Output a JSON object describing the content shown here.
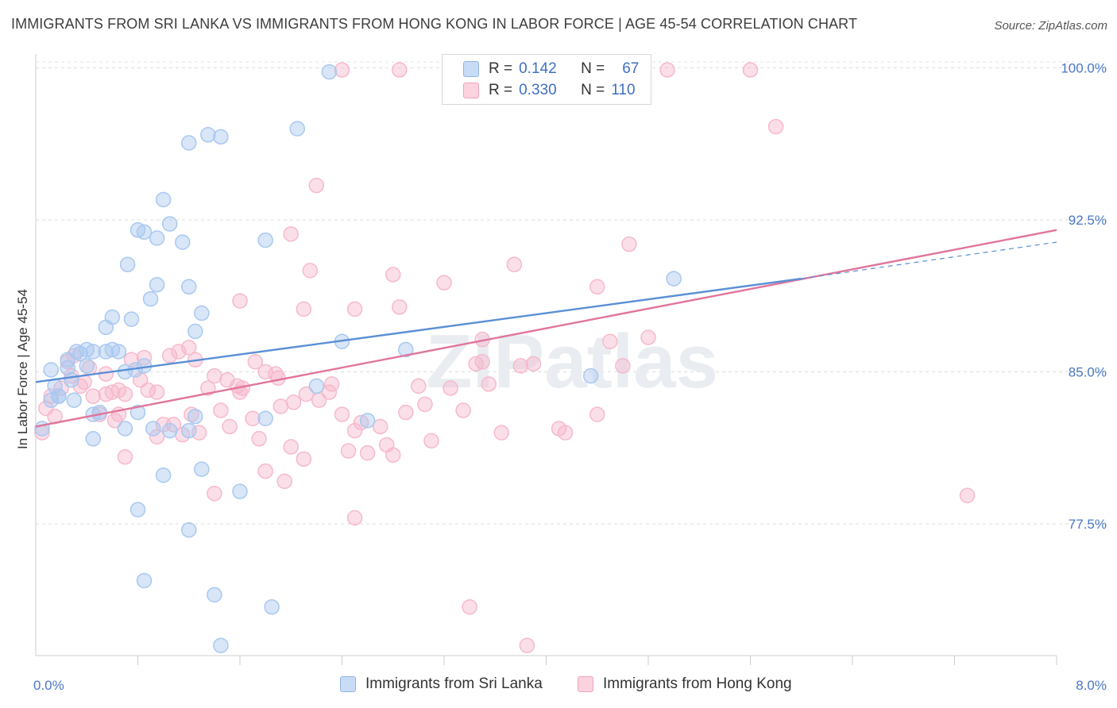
{
  "title": "IMMIGRANTS FROM SRI LANKA VS IMMIGRANTS FROM HONG KONG IN LABOR FORCE | AGE 45-54 CORRELATION CHART",
  "source": "Source: ZipAtlas.com",
  "watermark": "ZIPatlas",
  "legend": {
    "rows": [
      {
        "r_label": "R =",
        "r_value": "0.142",
        "n_label": "N =",
        "n_value": "67",
        "color": "#a9c8f0"
      },
      {
        "r_label": "R =",
        "r_value": "0.330",
        "n_label": "N =",
        "n_value": "110",
        "color": "#f6b9cb"
      }
    ]
  },
  "bottom_legend": [
    {
      "label": "Immigrants from Sri Lanka",
      "color": "#a9c8f0"
    },
    {
      "label": "Immigrants from Hong Kong",
      "color": "#f6b9cb"
    }
  ],
  "chart_data": {
    "type": "scatter",
    "xlabel": "",
    "ylabel": "In Labor Force | Age 45-54",
    "xlim": [
      0,
      8
    ],
    "ylim": [
      71.0,
      101.0
    ],
    "x_tick_labels": [
      "0.0%",
      "8.0%"
    ],
    "y_ticks": [
      77.5,
      85.0,
      92.5,
      100.0
    ],
    "y_tick_labels": [
      "77.5%",
      "85.0%",
      "92.5%",
      "100.0%"
    ],
    "grid": "horizontal dashed",
    "legend_position": "top-center",
    "series": [
      {
        "name": "Immigrants from Sri Lanka",
        "color": "#5a8fd6",
        "fill": "#a9c8f0",
        "trend": {
          "x0": 0,
          "y0": 84.5,
          "x1": 6.0,
          "y1": 89.6,
          "dashed_to_x": 8.0,
          "dashed_to_y": 91.4
        },
        "points": [
          [
            0.05,
            82.2
          ],
          [
            0.12,
            85.1
          ],
          [
            0.15,
            84.3
          ],
          [
            0.18,
            83.8
          ],
          [
            0.12,
            83.6
          ],
          [
            0.28,
            84.6
          ],
          [
            0.25,
            85.6
          ],
          [
            0.35,
            85.9
          ],
          [
            0.4,
            86.1
          ],
          [
            0.32,
            86.0
          ],
          [
            0.45,
            86.0
          ],
          [
            0.55,
            86.0
          ],
          [
            0.6,
            86.1
          ],
          [
            0.4,
            85.3
          ],
          [
            0.7,
            85.0
          ],
          [
            0.78,
            85.1
          ],
          [
            0.85,
            85.3
          ],
          [
            0.25,
            85.2
          ],
          [
            0.3,
            83.6
          ],
          [
            0.18,
            83.8
          ],
          [
            0.45,
            82.9
          ],
          [
            0.5,
            83.0
          ],
          [
            0.8,
            83.0
          ],
          [
            0.7,
            82.2
          ],
          [
            1.05,
            82.1
          ],
          [
            0.92,
            82.2
          ],
          [
            0.45,
            81.7
          ],
          [
            1.2,
            82.1
          ],
          [
            1.25,
            82.8
          ],
          [
            1.8,
            82.7
          ],
          [
            0.55,
            87.2
          ],
          [
            0.6,
            87.7
          ],
          [
            0.65,
            86.0
          ],
          [
            0.75,
            87.6
          ],
          [
            0.9,
            88.6
          ],
          [
            0.72,
            90.3
          ],
          [
            0.95,
            89.3
          ],
          [
            1.2,
            89.2
          ],
          [
            1.3,
            87.9
          ],
          [
            1.25,
            87.0
          ],
          [
            0.85,
            91.9
          ],
          [
            0.95,
            91.6
          ],
          [
            0.8,
            92.0
          ],
          [
            1.05,
            92.3
          ],
          [
            1.0,
            93.5
          ],
          [
            1.15,
            91.4
          ],
          [
            1.8,
            91.5
          ],
          [
            1.2,
            96.3
          ],
          [
            1.35,
            96.7
          ],
          [
            1.45,
            96.6
          ],
          [
            2.05,
            97.0
          ],
          [
            2.3,
            99.8
          ],
          [
            2.4,
            86.5
          ],
          [
            2.2,
            84.3
          ],
          [
            2.9,
            86.1
          ],
          [
            2.6,
            82.6
          ],
          [
            4.35,
            84.8
          ],
          [
            5.0,
            89.6
          ],
          [
            1.0,
            79.9
          ],
          [
            1.3,
            80.2
          ],
          [
            1.6,
            79.1
          ],
          [
            0.8,
            78.2
          ],
          [
            1.2,
            77.2
          ],
          [
            0.85,
            74.7
          ],
          [
            1.4,
            74.0
          ],
          [
            1.85,
            73.4
          ],
          [
            1.45,
            71.5
          ]
        ]
      },
      {
        "name": "Immigrants from Hong Kong",
        "color": "#e0759b",
        "fill": "#f6b9cb",
        "trend": {
          "x0": 0,
          "y0": 82.3,
          "x1": 8.0,
          "y1": 92.0
        },
        "points": [
          [
            0.05,
            82.0
          ],
          [
            0.08,
            83.2
          ],
          [
            0.12,
            83.8
          ],
          [
            0.2,
            84.2
          ],
          [
            0.3,
            85.8
          ],
          [
            0.25,
            85.5
          ],
          [
            0.38,
            84.5
          ],
          [
            0.42,
            85.2
          ],
          [
            0.45,
            83.8
          ],
          [
            0.55,
            83.9
          ],
          [
            0.6,
            84.0
          ],
          [
            0.65,
            84.1
          ],
          [
            0.7,
            83.9
          ],
          [
            0.5,
            82.9
          ],
          [
            0.65,
            82.9
          ],
          [
            0.75,
            85.6
          ],
          [
            0.85,
            85.7
          ],
          [
            0.82,
            84.6
          ],
          [
            0.95,
            84.0
          ],
          [
            1.0,
            82.4
          ],
          [
            1.05,
            85.8
          ],
          [
            1.12,
            86.0
          ],
          [
            1.2,
            86.2
          ],
          [
            1.25,
            85.6
          ],
          [
            1.35,
            84.2
          ],
          [
            1.4,
            84.8
          ],
          [
            1.45,
            83.1
          ],
          [
            1.5,
            84.6
          ],
          [
            1.58,
            84.3
          ],
          [
            1.6,
            84.0
          ],
          [
            1.7,
            82.7
          ],
          [
            1.75,
            81.7
          ],
          [
            1.8,
            85.0
          ],
          [
            1.9,
            84.7
          ],
          [
            1.92,
            83.3
          ],
          [
            2.0,
            81.3
          ],
          [
            2.1,
            80.7
          ],
          [
            2.3,
            84.0
          ],
          [
            2.4,
            82.9
          ],
          [
            2.45,
            81.1
          ],
          [
            2.5,
            82.1
          ],
          [
            2.55,
            82.5
          ],
          [
            2.6,
            81.0
          ],
          [
            2.7,
            82.3
          ],
          [
            2.75,
            81.4
          ],
          [
            2.8,
            80.9
          ],
          [
            2.9,
            83.0
          ],
          [
            3.0,
            84.3
          ],
          [
            3.05,
            83.4
          ],
          [
            3.1,
            81.6
          ],
          [
            3.25,
            84.2
          ],
          [
            3.35,
            83.1
          ],
          [
            3.45,
            85.4
          ],
          [
            3.5,
            85.5
          ],
          [
            3.55,
            84.4
          ],
          [
            3.65,
            82.0
          ],
          [
            3.8,
            85.3
          ],
          [
            3.9,
            85.4
          ],
          [
            4.1,
            82.2
          ],
          [
            4.15,
            82.0
          ],
          [
            4.4,
            82.9
          ],
          [
            4.5,
            86.5
          ],
          [
            4.6,
            85.3
          ],
          [
            4.8,
            86.7
          ],
          [
            0.7,
            80.8
          ],
          [
            0.95,
            81.8
          ],
          [
            1.15,
            81.9
          ],
          [
            1.4,
            79.0
          ],
          [
            1.8,
            80.1
          ],
          [
            1.95,
            79.6
          ],
          [
            2.5,
            77.8
          ],
          [
            3.4,
            73.4
          ],
          [
            3.85,
            71.5
          ],
          [
            7.3,
            78.9
          ],
          [
            2.2,
            94.2
          ],
          [
            2.0,
            91.8
          ],
          [
            1.6,
            88.5
          ],
          [
            2.15,
            90.0
          ],
          [
            2.1,
            88.1
          ],
          [
            2.5,
            88.1
          ],
          [
            2.8,
            89.8
          ],
          [
            2.85,
            88.2
          ],
          [
            3.2,
            89.4
          ],
          [
            3.5,
            86.6
          ],
          [
            3.75,
            90.3
          ],
          [
            4.4,
            89.2
          ],
          [
            4.65,
            91.3
          ],
          [
            5.8,
            97.1
          ],
          [
            2.4,
            99.9
          ],
          [
            2.85,
            99.9
          ],
          [
            4.1,
            99.9
          ],
          [
            4.95,
            99.9
          ],
          [
            5.6,
            99.9
          ],
          [
            0.15,
            82.8
          ],
          [
            0.28,
            84.8
          ],
          [
            0.35,
            84.3
          ],
          [
            0.55,
            84.9
          ],
          [
            0.62,
            82.6
          ],
          [
            0.88,
            84.1
          ],
          [
            1.08,
            82.4
          ],
          [
            1.22,
            82.9
          ],
          [
            1.28,
            82.0
          ],
          [
            1.52,
            82.3
          ],
          [
            1.62,
            84.2
          ],
          [
            1.72,
            85.5
          ],
          [
            1.88,
            84.9
          ],
          [
            2.02,
            83.5
          ],
          [
            2.12,
            83.9
          ],
          [
            2.22,
            83.6
          ],
          [
            2.32,
            84.4
          ]
        ]
      }
    ]
  }
}
